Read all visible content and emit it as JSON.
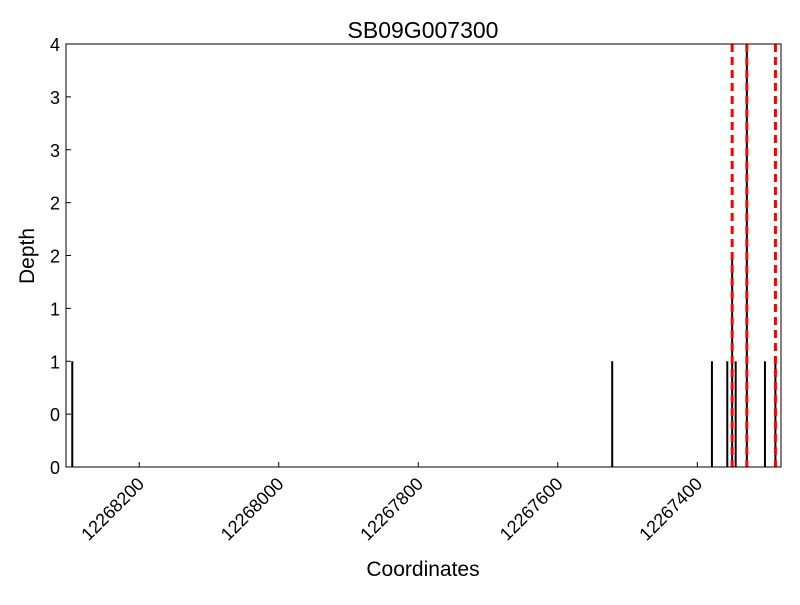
{
  "chart_data": {
    "type": "bar",
    "title": "SB09G007300",
    "xlabel": "Coordinates",
    "ylabel": "Depth",
    "xlim": [
      12268305,
      12267280
    ],
    "x_inverted": true,
    "ylim": [
      0,
      4
    ],
    "xticks": [
      12268200,
      12268000,
      12267800,
      12267600,
      12267400
    ],
    "xtick_labels": [
      "12268200",
      "12268000",
      "12267800",
      "12267600",
      "12267400"
    ],
    "yticks": [
      0,
      0.5,
      1,
      1.5,
      2,
      2.5,
      3,
      3.5,
      4
    ],
    "ytick_labels": [
      "0",
      "0",
      "1",
      "1",
      "2",
      "2",
      "3",
      "3",
      "4"
    ],
    "grid": false,
    "bars": [
      {
        "x": 12268296,
        "depth": 1
      },
      {
        "x": 12267522,
        "depth": 1
      },
      {
        "x": 12267379,
        "depth": 1
      },
      {
        "x": 12267357,
        "depth": 1
      },
      {
        "x": 12267350,
        "depth": 2
      },
      {
        "x": 12267345,
        "depth": 1
      },
      {
        "x": 12267329,
        "depth": 4
      },
      {
        "x": 12267303,
        "depth": 1
      },
      {
        "x": 12267288,
        "depth": 1
      }
    ],
    "markers": [
      12267350,
      12267329,
      12267288
    ],
    "bar_color": "#000000",
    "marker_color": "#ff0000",
    "marker_style": "dashed"
  }
}
